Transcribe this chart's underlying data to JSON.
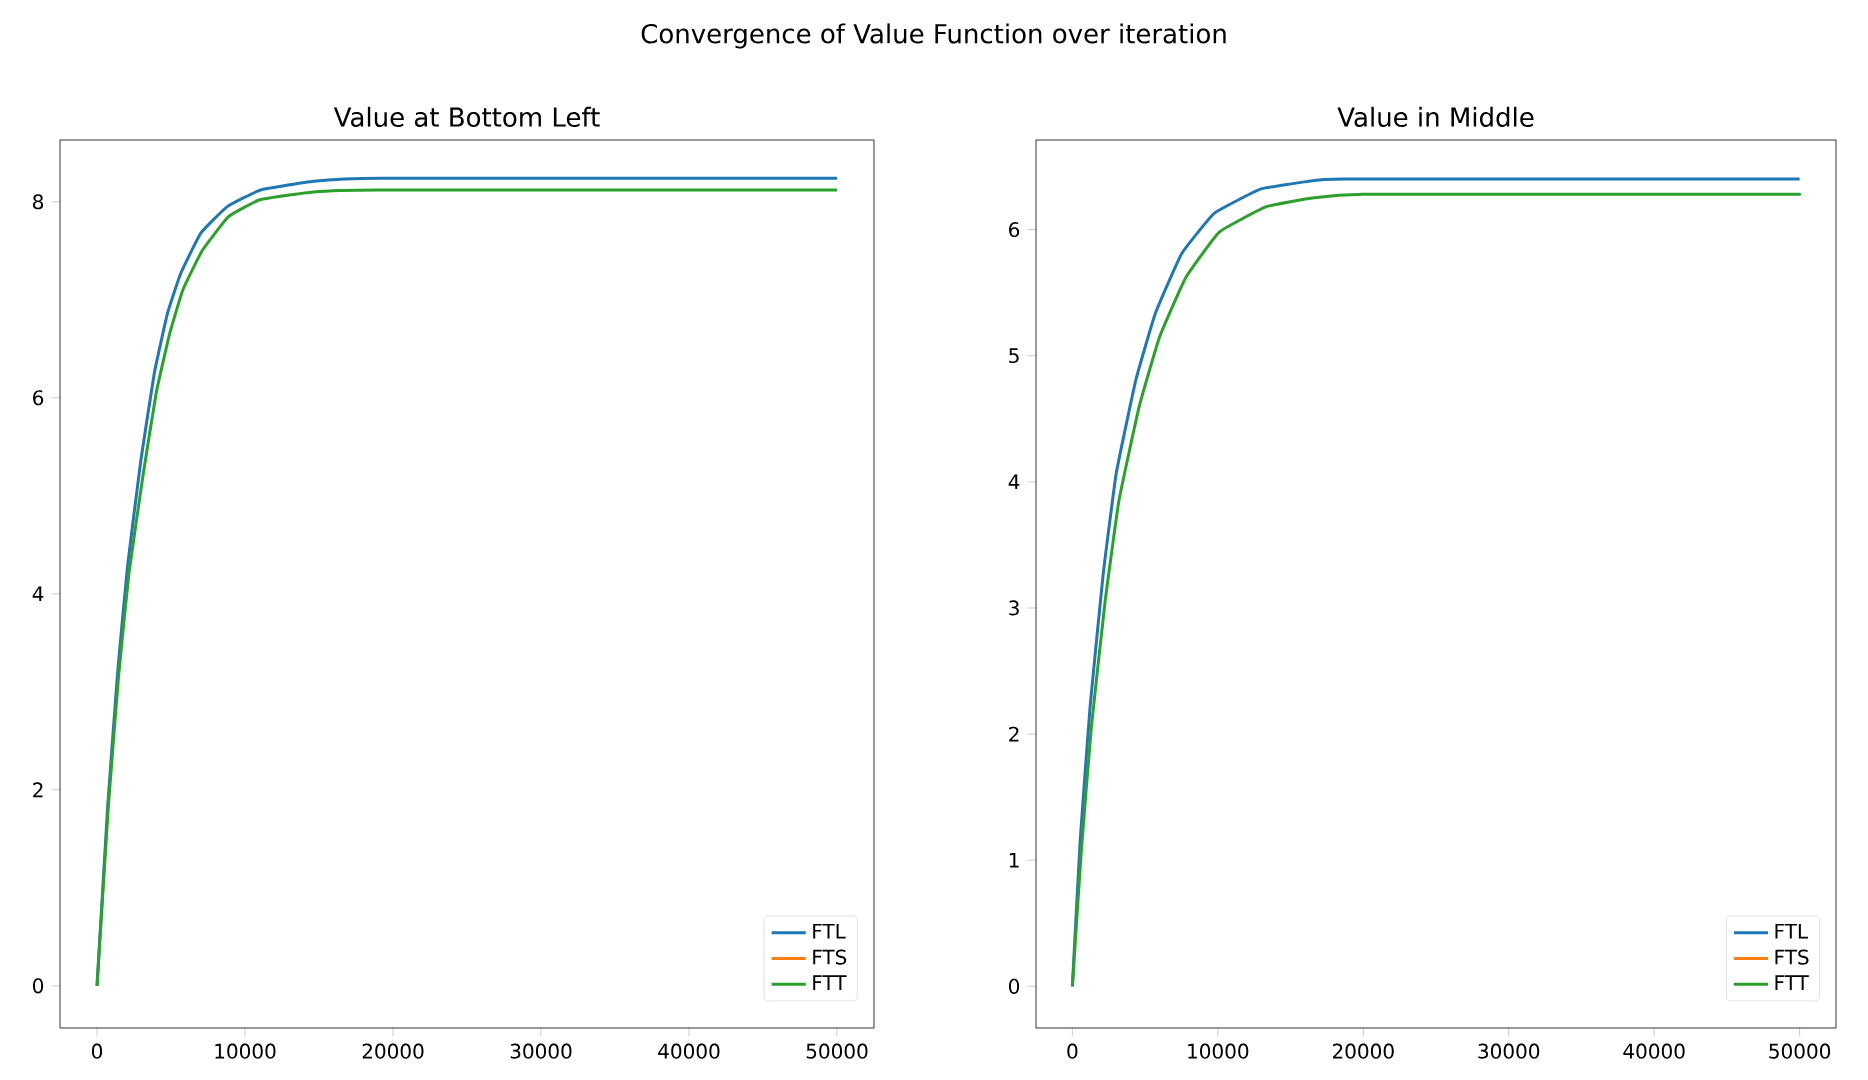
{
  "chart_data": [
    {
      "type": "line",
      "title": "Value at Bottom Left",
      "annotations": [
        "Convergence of Value Function over iteration"
      ],
      "xlim": [
        -2500,
        52500
      ],
      "ylim": [
        -0.43,
        8.63
      ],
      "xticks": [
        0,
        10000,
        20000,
        30000,
        40000,
        50000
      ],
      "yticks": [
        0,
        2,
        4,
        6,
        8
      ],
      "legend": "bottom right",
      "series": [
        {
          "name": "FTL",
          "color": "#1f77b4",
          "x": [
            0,
            720,
            1390,
            2060,
            2970,
            3870,
            4760,
            5660,
            7010,
            8800,
            11050,
            14650,
            19140,
            50000
          ],
          "values": [
            0,
            1.83,
            3.19,
            4.28,
            5.37,
            6.25,
            6.86,
            7.27,
            7.68,
            7.95,
            8.12,
            8.21,
            8.24,
            8.24
          ]
        },
        {
          "name": "FTS",
          "color": "#ff7f0e"
        },
        {
          "name": "FTT",
          "color": "#2ca02c",
          "x": [
            0,
            750,
            1450,
            2150,
            3100,
            4000,
            4900,
            5800,
            7100,
            8900,
            11000,
            14600,
            19000,
            50000
          ],
          "values": [
            0,
            1.8,
            3.15,
            4.2,
            5.2,
            6.05,
            6.65,
            7.1,
            7.5,
            7.85,
            8.02,
            8.1,
            8.12,
            8.12
          ]
        }
      ]
    },
    {
      "type": "line",
      "title": "Value in Middle",
      "xlim": [
        -2500,
        52500
      ],
      "ylim": [
        -0.33,
        6.71
      ],
      "xticks": [
        0,
        10000,
        20000,
        30000,
        40000,
        50000
      ],
      "yticks": [
        0,
        1,
        2,
        3,
        4,
        5,
        6
      ],
      "legend": "bottom right",
      "series": [
        {
          "name": "FTL",
          "color": "#1f77b4",
          "x": [
            0,
            540,
            1220,
            2120,
            3020,
            4370,
            5720,
            7520,
            9770,
            12930,
            16080,
            18780,
            50000
          ],
          "values": [
            0,
            1.16,
            2.22,
            3.27,
            4.07,
            4.81,
            5.34,
            5.81,
            6.13,
            6.32,
            6.38,
            6.4,
            6.4
          ]
        },
        {
          "name": "FTS",
          "color": "#ff7f0e"
        },
        {
          "name": "FTT",
          "color": "#2ca02c",
          "x": [
            0,
            600,
            1300,
            2250,
            3200,
            4600,
            6000,
            7800,
            10100,
            13300,
            16500,
            20000,
            50000
          ],
          "values": [
            0,
            1.05,
            2.05,
            3.05,
            3.85,
            4.6,
            5.15,
            5.62,
            5.98,
            6.18,
            6.25,
            6.28,
            6.28
          ]
        }
      ]
    }
  ]
}
